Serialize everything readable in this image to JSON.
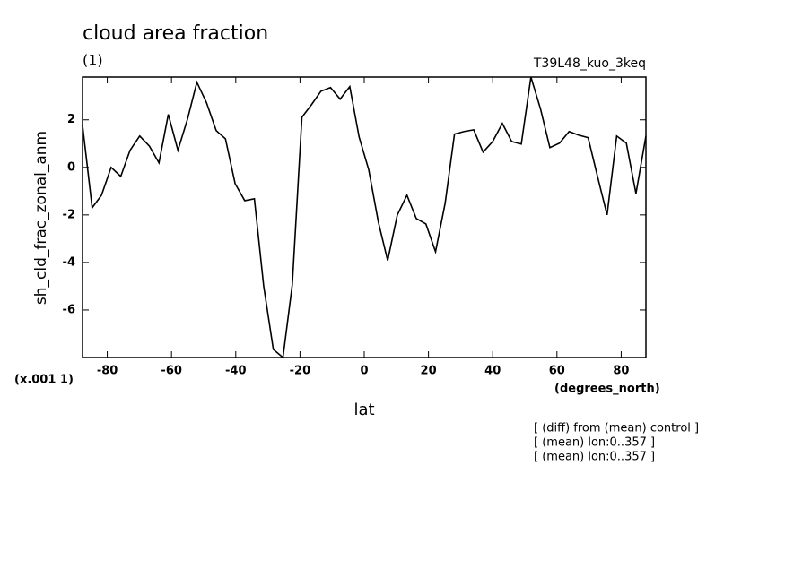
{
  "chart_data": {
    "type": "line",
    "title": "cloud area fraction",
    "subtitle": "(1)",
    "run_label": "T39L48_kuo_3keq",
    "y_label": "sh_cld_frac_zonal_anm",
    "y_unit": "(x.001 1)",
    "x_unit": "(degrees_north)",
    "x_label": "lat",
    "notes": [
      "[ (diff) from (mean) control ]",
      "[ (mean) lon:0..357 ]",
      "[ (mean) lon:0..357 ]"
    ],
    "color": "#000000",
    "x": [
      -87.7,
      -84.7,
      -81.8,
      -78.8,
      -75.8,
      -72.9,
      -69.9,
      -66.9,
      -63.9,
      -61.0,
      -58.0,
      -55.0,
      -52.1,
      -49.1,
      -46.1,
      -43.2,
      -40.2,
      -37.2,
      -34.2,
      -31.3,
      -28.3,
      -25.3,
      -22.4,
      -19.4,
      -16.4,
      -13.5,
      -10.5,
      -7.5,
      -4.5,
      -1.6,
      1.4,
      4.4,
      7.3,
      10.3,
      13.3,
      16.2,
      19.2,
      22.2,
      25.2,
      28.1,
      31.1,
      34.1,
      37.0,
      40.0,
      43.0,
      45.9,
      48.9,
      51.9,
      54.9,
      57.8,
      60.8,
      63.8,
      66.7,
      69.7,
      72.7,
      75.6,
      78.6,
      81.6,
      84.6,
      87.7
    ],
    "values": [
      1.77,
      -1.7,
      -1.17,
      0,
      -0.38,
      0.72,
      1.32,
      0.9,
      0.19,
      2.23,
      0.72,
      2.04,
      3.58,
      2.72,
      1.55,
      1.2,
      -0.68,
      -1.4,
      -1.32,
      -5.0,
      -7.66,
      -8.0,
      -4.94,
      2.11,
      2.64,
      3.2,
      3.36,
      2.87,
      3.4,
      1.28,
      -0.1,
      -2.3,
      -3.92,
      -2.0,
      -1.17,
      -2.15,
      -2.38,
      -3.55,
      -1.5,
      1.4,
      1.51,
      1.58,
      0.64,
      1.09,
      1.85,
      1.09,
      0.98,
      3.8,
      2.45,
      0.83,
      1.02,
      1.51,
      1.36,
      1.25,
      -0.42,
      -2.0,
      1.32,
      1.02,
      -1.1,
      1.32
    ],
    "xlim": [
      -87.7,
      87.7
    ],
    "ylim": [
      -8,
      3.8
    ],
    "xticks": [
      -80,
      -60,
      -40,
      -20,
      0,
      20,
      40,
      60,
      80
    ],
    "yticks": [
      -6,
      -4,
      -2,
      0,
      2
    ]
  }
}
